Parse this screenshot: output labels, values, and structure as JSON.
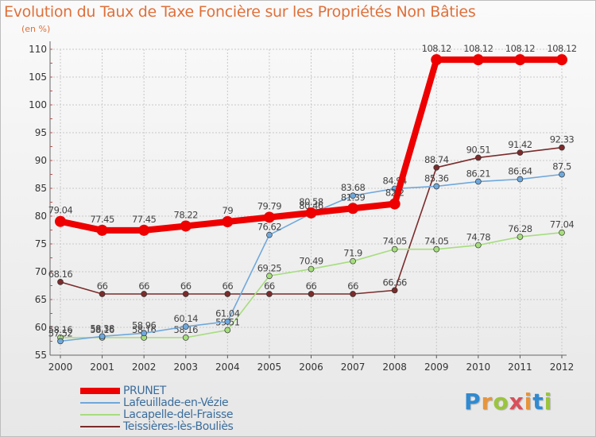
{
  "title": "Evolution du Taux de Taxe Foncière sur les Propriétés Non Bâties",
  "unit_label": "(en %)",
  "logo": {
    "letters": [
      "P",
      "r",
      "o",
      "x",
      "i",
      "t",
      "i"
    ],
    "colors": [
      "#2f8ad1",
      "#e8943a",
      "#9ac53c",
      "#d94f5a",
      "#e8943a",
      "#2f8ad1",
      "#9ac53c"
    ]
  },
  "chart_data": {
    "type": "line",
    "categories": [
      "2000",
      "2001",
      "2002",
      "2003",
      "2004",
      "2005",
      "2006",
      "2007",
      "2008",
      "2009",
      "2010",
      "2011",
      "2012"
    ],
    "ylim": [
      55,
      110
    ],
    "yticks": [
      "55",
      "60",
      "65",
      "70",
      "75",
      "80",
      "85",
      "90",
      "95",
      "100",
      "105",
      "110"
    ],
    "grid": true,
    "legend_position": "bottom-left",
    "series": [
      {
        "name": "PRUNET",
        "color": "#ee0000",
        "values": [
          79.04,
          77.45,
          77.45,
          78.22,
          79,
          79.79,
          80.58,
          81.39,
          82.2,
          108.12,
          108.12,
          108.12,
          108.12
        ],
        "labels": [
          "79.04",
          "77.45",
          "77.45",
          "78.22",
          "79",
          "79.79",
          "80.58",
          "81.39",
          "82.2",
          "108.12",
          "108.12",
          "108.12",
          "108.12"
        ]
      },
      {
        "name": "Lafeuillade-en-Vézie",
        "color": "#6fa8dc",
        "values": [
          57.52,
          58.38,
          58.96,
          60.14,
          61.04,
          76.62,
          80.46,
          83.68,
          84.94,
          85.36,
          86.21,
          86.64,
          87.5
        ],
        "labels": [
          "57.52",
          "58.38",
          "58.96",
          "60.14",
          "61.04",
          "76.62",
          "80.46",
          "83.68",
          "84.94",
          "85.36",
          "86.21",
          "86.64",
          "87.5"
        ]
      },
      {
        "name": "Lacapelle-del-Fraisse",
        "color": "#a6dd7e",
        "values": [
          58.16,
          58.16,
          58.16,
          58.16,
          59.51,
          69.25,
          70.49,
          71.9,
          74.05,
          74.05,
          74.78,
          76.28,
          77.04
        ],
        "labels": [
          "58.16",
          "58.16",
          "58.16",
          "58.16",
          "59.51",
          "69.25",
          "70.49",
          "71.9",
          "74.05",
          "74.05",
          "74.78",
          "76.28",
          "77.04"
        ]
      },
      {
        "name": "Teissières-lès-Bouliès",
        "color": "#7b2b2b",
        "values": [
          68.16,
          66,
          66,
          66,
          66,
          66,
          66,
          66,
          66.66,
          88.74,
          90.51,
          91.42,
          92.33
        ],
        "labels": [
          "68.16",
          "66",
          "66",
          "66",
          "66",
          "66",
          "66",
          "66",
          "66.66",
          "88.74",
          "90.51",
          "91.42",
          "92.33"
        ]
      }
    ]
  }
}
